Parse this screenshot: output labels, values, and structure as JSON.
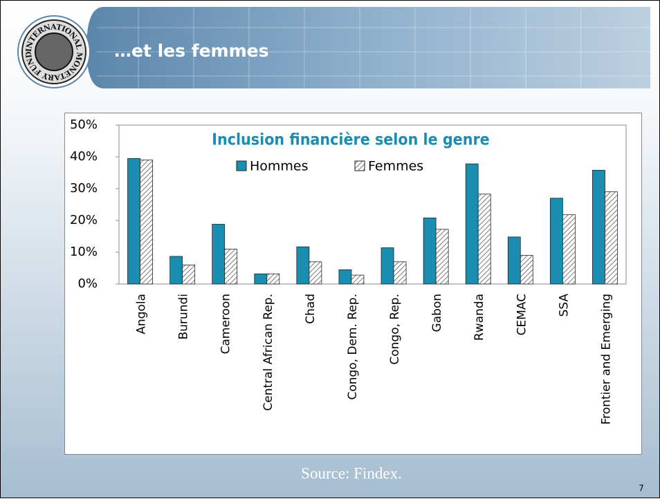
{
  "slide": {
    "title": "…et les femmes",
    "logo_text": "INTERNATIONAL MONETARY FUND",
    "source": "Source: Findex.",
    "page": "7"
  },
  "chart_data": {
    "type": "bar",
    "title": "Inclusion financière selon le genre",
    "categories": [
      "Angola",
      "Burundi",
      "Cameroon",
      "Central African Rep.",
      "Chad",
      "Congo, Dem. Rep.",
      "Congo, Rep.",
      "Gabon",
      "Rwanda",
      "CEMAC",
      "SSA",
      "Frontier and Emerging"
    ],
    "series": [
      {
        "name": "Hommes",
        "color": "#1b8db0",
        "values": [
          39.5,
          8.7,
          18.8,
          3.2,
          11.7,
          4.5,
          11.4,
          20.8,
          37.8,
          14.8,
          27,
          35.8
        ]
      },
      {
        "name": "Femmes",
        "color": "hatched",
        "values": [
          39,
          6,
          11,
          3.2,
          7,
          2.8,
          7,
          17.2,
          28.3,
          9,
          21.8,
          29
        ]
      }
    ],
    "ylim": [
      0,
      50
    ],
    "yticks": [
      {
        "value": 0,
        "label": "0%"
      },
      {
        "value": 10,
        "label": "10%"
      },
      {
        "value": 20,
        "label": "20%"
      },
      {
        "value": 30,
        "label": "30%"
      },
      {
        "value": 40,
        "label": "40%"
      },
      {
        "value": 50,
        "label": "50%"
      }
    ],
    "legend": "top"
  }
}
